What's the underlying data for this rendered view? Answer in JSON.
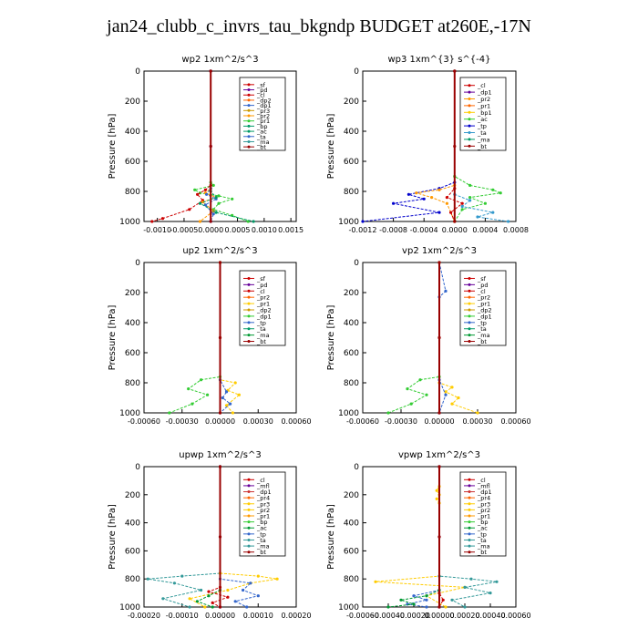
{
  "figure": {
    "title": "jan24_clubb_c_invrs_tau_bkgndp  BUDGET at260E,-17N"
  },
  "chart_data": [
    {
      "type": "line",
      "title": "wp2   1xm^2/s^3",
      "ylabel": "Pressure [hPa]",
      "ylim": [
        1000,
        0
      ],
      "xlim": [
        -0.00125,
        0.0016
      ],
      "xticks": [
        -0.001,
        -0.0005,
        0.0,
        0.0005,
        0.001,
        0.0015
      ],
      "xtick_labels": [
        "-0.0010",
        "-0.0005",
        "0.0000",
        "0.0005",
        "0.0010",
        "0.0015"
      ],
      "yticks": [
        0,
        200,
        400,
        600,
        800,
        1000
      ],
      "legend": [
        "_sf",
        "_pd",
        "_cl",
        "_dp2",
        "_dp1",
        "_pr3",
        "_pr2",
        "_pr1",
        "_bp",
        "_ac",
        "_ta",
        "_ma",
        "_bt"
      ],
      "series": [
        {
          "name": "_pr1",
          "color": "#33cc33",
          "x": [
            0,
            0,
            5e-05,
            -0.0003,
            -0.0002,
            0.00015,
            0.0004,
            0.00015,
            5e-05,
            0.0004,
            0.0007
          ],
          "y": [
            0,
            740,
            760,
            790,
            810,
            830,
            850,
            880,
            920,
            960,
            1000
          ]
        },
        {
          "name": "_cl",
          "color": "#cc0000",
          "x": [
            0,
            0,
            -0.0001,
            -0.00025,
            -0.00015,
            -0.0004,
            -0.0009,
            -0.0011
          ],
          "y": [
            0,
            760,
            790,
            820,
            860,
            920,
            980,
            1000
          ]
        },
        {
          "name": "_pr2",
          "color": "#ff9900",
          "x": [
            0,
            0,
            -0.0001,
            0.0001,
            -0.00015,
            5e-05,
            -0.0002
          ],
          "y": [
            0,
            780,
            810,
            840,
            870,
            930,
            1000
          ]
        },
        {
          "name": "_dp1",
          "color": "#3366cc",
          "x": [
            0,
            0,
            -8e-05,
            0.0001,
            -0.0001,
            5e-05,
            0
          ],
          "y": [
            0,
            780,
            820,
            850,
            890,
            950,
            1000
          ]
        },
        {
          "name": "_ac",
          "color": "#009966",
          "x": [
            0,
            0,
            0.0001,
            -0.0002,
            0.0001,
            0.0008
          ],
          "y": [
            0,
            800,
            840,
            880,
            940,
            1000
          ]
        },
        {
          "name": "_pd",
          "color": "#660099",
          "x": [
            0,
            0,
            0
          ],
          "y": [
            0,
            500,
            1000
          ]
        },
        {
          "name": "_bt",
          "color": "#990000",
          "x": [
            0,
            0,
            0
          ],
          "y": [
            0,
            500,
            1000
          ]
        }
      ]
    },
    {
      "type": "line",
      "title": "wp3   1xm^{3} s^{-4}",
      "ylabel": "Pressure [hPa]",
      "ylim": [
        1000,
        0
      ],
      "xlim": [
        -0.0012,
        0.0008
      ],
      "xticks": [
        -0.0012,
        -0.0008,
        -0.0004,
        0.0,
        0.0004,
        0.0008
      ],
      "xtick_labels": [
        "-0.0012",
        "-0.0008",
        "-0.0004",
        "0.0000",
        "0.0004",
        "0.0008"
      ],
      "yticks": [
        0,
        200,
        400,
        600,
        800,
        1000
      ],
      "legend": [
        "_cl",
        "_dp1",
        "_pr2",
        "_pr1",
        "_bp1",
        "_ac",
        "_tp",
        "_ta",
        "_ma",
        "_bt"
      ],
      "series": [
        {
          "name": "_ac",
          "color": "#33cc33",
          "x": [
            0,
            0,
            0.0002,
            0.0005,
            0.0006,
            0.0002,
            0.0004,
            0.0001,
            0
          ],
          "y": [
            0,
            700,
            760,
            790,
            810,
            840,
            880,
            920,
            1000
          ]
        },
        {
          "name": "_tp",
          "color": "#0000cc",
          "x": [
            0,
            0,
            -0.0002,
            -0.0006,
            -0.0004,
            -0.0008,
            -0.0002,
            -0.0012
          ],
          "y": [
            0,
            740,
            780,
            820,
            850,
            880,
            940,
            1000
          ]
        },
        {
          "name": "_pr2",
          "color": "#ff9900",
          "x": [
            0,
            0,
            -0.0002,
            -0.0005,
            -0.0003,
            -0.0001,
            0
          ],
          "y": [
            0,
            760,
            790,
            810,
            840,
            880,
            1000
          ]
        },
        {
          "name": "_ta",
          "color": "#3399cc",
          "x": [
            0,
            0,
            0.0002,
            0.0001,
            0.0005,
            0.0003,
            0.0007
          ],
          "y": [
            0,
            820,
            860,
            900,
            940,
            970,
            1000
          ]
        },
        {
          "name": "_cl",
          "color": "#cc0000",
          "x": [
            0,
            0,
            -0.0001,
            0.0001,
            -5e-05,
            0
          ],
          "y": [
            0,
            780,
            840,
            880,
            940,
            1000
          ]
        },
        {
          "name": "_bt",
          "color": "#990000",
          "x": [
            0,
            0,
            0
          ],
          "y": [
            0,
            500,
            1000
          ]
        }
      ]
    },
    {
      "type": "line",
      "title": "up2   1xm^2/s^3",
      "ylabel": "Pressure [hPa]",
      "ylim": [
        1000,
        0
      ],
      "xlim": [
        -0.0006,
        0.0006
      ],
      "xticks": [
        -0.0006,
        -0.0003,
        0.0,
        0.0003,
        0.0006
      ],
      "xtick_labels": [
        "-0.00060",
        "-0.00030",
        "0.00000",
        "0.00030",
        "0.00060"
      ],
      "yticks": [
        0,
        200,
        400,
        600,
        800,
        1000
      ],
      "legend": [
        "_sf",
        "_pd",
        "_cl",
        "_pr2",
        "_pr1",
        "_dp2",
        "_dp1",
        "_tp",
        "_ta",
        "_ma",
        "_bt"
      ],
      "series": [
        {
          "name": "_dp1",
          "color": "#33cc33",
          "x": [
            0,
            0,
            -0.00015,
            -0.00025,
            -0.0001,
            -0.00022,
            -0.0004
          ],
          "y": [
            0,
            760,
            780,
            840,
            880,
            940,
            1000
          ]
        },
        {
          "name": "_pr1",
          "color": "#ffcc00",
          "x": [
            0,
            0,
            0.00012,
            6e-05,
            0.00015,
            5e-05,
            0.0001
          ],
          "y": [
            0,
            780,
            800,
            850,
            880,
            950,
            1000
          ]
        },
        {
          "name": "_tp",
          "color": "#3366cc",
          "x": [
            0,
            0,
            5e-05,
            2e-05,
            8e-05,
            0
          ],
          "y": [
            0,
            780,
            860,
            900,
            940,
            1000
          ]
        },
        {
          "name": "_cl",
          "color": "#cc0000",
          "x": [
            0,
            0,
            0
          ],
          "y": [
            0,
            500,
            1000
          ]
        },
        {
          "name": "_bt",
          "color": "#990000",
          "x": [
            0,
            0,
            0
          ],
          "y": [
            0,
            500,
            1000
          ]
        }
      ]
    },
    {
      "type": "line",
      "title": "vp2   1xm^2/s^3",
      "ylabel": "Pressure [hPa]",
      "ylim": [
        1000,
        0
      ],
      "xlim": [
        -0.0006,
        0.0006
      ],
      "xticks": [
        -0.0006,
        -0.0003,
        0.0,
        0.0003,
        0.0006
      ],
      "xtick_labels": [
        "-0.00060",
        "-0.00030",
        "0.00000",
        "0.00030",
        "0.00060"
      ],
      "yticks": [
        0,
        200,
        400,
        600,
        800,
        1000
      ],
      "legend": [
        "_sf",
        "_pd",
        "_cl",
        "_pr2",
        "_pr1",
        "_dp2",
        "_dp1",
        "_tp",
        "_ta",
        "_ma",
        "_bt"
      ],
      "series": [
        {
          "name": "_dp1",
          "color": "#33cc33",
          "x": [
            0,
            0,
            -0.00015,
            -0.00025,
            -0.0001,
            -0.00022,
            -0.0004
          ],
          "y": [
            0,
            760,
            780,
            840,
            880,
            940,
            1000
          ]
        },
        {
          "name": "_pr1",
          "color": "#ffcc00",
          "x": [
            0,
            0,
            0.0001,
            5e-05,
            0.00015,
            0.0001,
            0.0003
          ],
          "y": [
            0,
            800,
            830,
            860,
            900,
            940,
            1000
          ]
        },
        {
          "name": "_tp",
          "color": "#3366cc",
          "x": [
            0,
            5e-05,
            0,
            0,
            5e-05,
            0
          ],
          "y": [
            0,
            190,
            230,
            780,
            880,
            1000
          ]
        },
        {
          "name": "_cl",
          "color": "#cc0000",
          "x": [
            0,
            0,
            0
          ],
          "y": [
            0,
            500,
            1000
          ]
        },
        {
          "name": "_bt",
          "color": "#990000",
          "x": [
            0,
            0,
            0
          ],
          "y": [
            0,
            500,
            1000
          ]
        }
      ]
    },
    {
      "type": "line",
      "title": "upwp   1xm^2/s^3",
      "ylabel": "Pressure [hPa]",
      "ylim": [
        1000,
        0
      ],
      "xlim": [
        -0.0002,
        0.0002
      ],
      "xticks": [
        -0.0002,
        -0.0001,
        0.0,
        0.0001,
        0.0002
      ],
      "xtick_labels": [
        "-0.00020",
        "-0.00010",
        "0.00000",
        "0.00010",
        "0.00020"
      ],
      "yticks": [
        0,
        200,
        400,
        600,
        800,
        1000
      ],
      "legend": [
        "_cl",
        "_mfl",
        "_dp1",
        "_pr4",
        "_pr3",
        "_pr2",
        "_pr1",
        "_bp",
        "_ac",
        "_tp",
        "_ta",
        "_ma",
        "_bt"
      ],
      "series": [
        {
          "name": "_ta",
          "color": "#339999",
          "x": [
            0,
            0,
            -0.0001,
            -0.00019,
            -0.00012,
            -5e-05,
            -0.00015,
            -8e-05
          ],
          "y": [
            0,
            760,
            780,
            800,
            830,
            880,
            940,
            1000
          ]
        },
        {
          "name": "_pr2",
          "color": "#ffcc00",
          "x": [
            0,
            0,
            0.0001,
            0.00015,
            8e-05,
            2e-05,
            -8e-05,
            -4e-05
          ],
          "y": [
            0,
            760,
            780,
            800,
            830,
            880,
            940,
            1000
          ]
        },
        {
          "name": "_tp",
          "color": "#3366cc",
          "x": [
            0,
            0,
            8e-05,
            6e-05,
            0.0001,
            4e-05,
            7e-05
          ],
          "y": [
            0,
            800,
            830,
            880,
            920,
            960,
            1000
          ]
        },
        {
          "name": "_cl",
          "color": "#cc0000",
          "x": [
            0,
            0,
            -3e-05,
            2e-05,
            -2e-05,
            0
          ],
          "y": [
            0,
            860,
            890,
            930,
            970,
            1000
          ]
        },
        {
          "name": "_ac",
          "color": "#009933",
          "x": [
            0,
            0,
            -3e-05,
            -6e-05,
            -2e-05
          ],
          "y": [
            0,
            880,
            920,
            960,
            1000
          ]
        },
        {
          "name": "_mfl",
          "color": "#660099",
          "x": [
            0,
            0,
            0
          ],
          "y": [
            0,
            500,
            1000
          ]
        },
        {
          "name": "_bt",
          "color": "#990000",
          "x": [
            0,
            0,
            0
          ],
          "y": [
            0,
            500,
            1000
          ]
        }
      ]
    },
    {
      "type": "line",
      "title": "vpwp   1xm^2/s^3",
      "ylabel": "Pressure [hPa]",
      "ylim": [
        1000,
        0
      ],
      "xlim": [
        -0.0006,
        0.0006
      ],
      "xticks": [
        -0.0006,
        -0.0004,
        -0.0002,
        0.0,
        0.0002,
        0.0004,
        0.0006
      ],
      "xtick_labels": [
        "-0.00060",
        "-0.00040",
        "-0.00020",
        "0.00000",
        "0.00020",
        "0.00040",
        "0.00060"
      ],
      "yticks": [
        0,
        200,
        400,
        600,
        800,
        1000
      ],
      "legend": [
        "_cl",
        "_mfl",
        "_dp1",
        "_pr4",
        "_pr3",
        "_pr2",
        "_pr1",
        "_bp",
        "_ac",
        "_tp",
        "_ta",
        "_ma",
        "_bt"
      ],
      "series": [
        {
          "name": "_pr2",
          "color": "#ffcc00",
          "x": [
            0,
            0,
            -2e-05,
            0,
            -2e-05,
            0,
            0,
            -0.0005,
            0.0002,
            -0.0001,
            5e-05
          ],
          "y": [
            0,
            140,
            170,
            200,
            230,
            260,
            780,
            820,
            860,
            920,
            1000
          ]
        },
        {
          "name": "_ta",
          "color": "#339999",
          "x": [
            0,
            0,
            0.00025,
            0.00045,
            0.0002,
            0.0004,
            0.0001,
            0.0002
          ],
          "y": [
            0,
            780,
            800,
            820,
            860,
            900,
            950,
            1000
          ]
        },
        {
          "name": "_tp",
          "color": "#3366cc",
          "x": [
            0,
            0,
            -0.0002,
            -0.0001,
            -0.00025,
            -0.0001
          ],
          "y": [
            0,
            880,
            920,
            950,
            980,
            1000
          ]
        },
        {
          "name": "_ac",
          "color": "#009933",
          "x": [
            0,
            0,
            -0.0001,
            -0.0003,
            -0.0002,
            -0.0004
          ],
          "y": [
            0,
            880,
            920,
            950,
            980,
            1000
          ]
        },
        {
          "name": "_cl",
          "color": "#cc0000",
          "x": [
            0,
            0,
            3e-05,
            0
          ],
          "y": [
            0,
            900,
            950,
            1000
          ]
        },
        {
          "name": "_mfl",
          "color": "#660099",
          "x": [
            0,
            0,
            0
          ],
          "y": [
            0,
            500,
            1000
          ]
        },
        {
          "name": "_bt",
          "color": "#990000",
          "x": [
            0,
            0,
            0
          ],
          "y": [
            0,
            500,
            1000
          ]
        }
      ]
    }
  ]
}
